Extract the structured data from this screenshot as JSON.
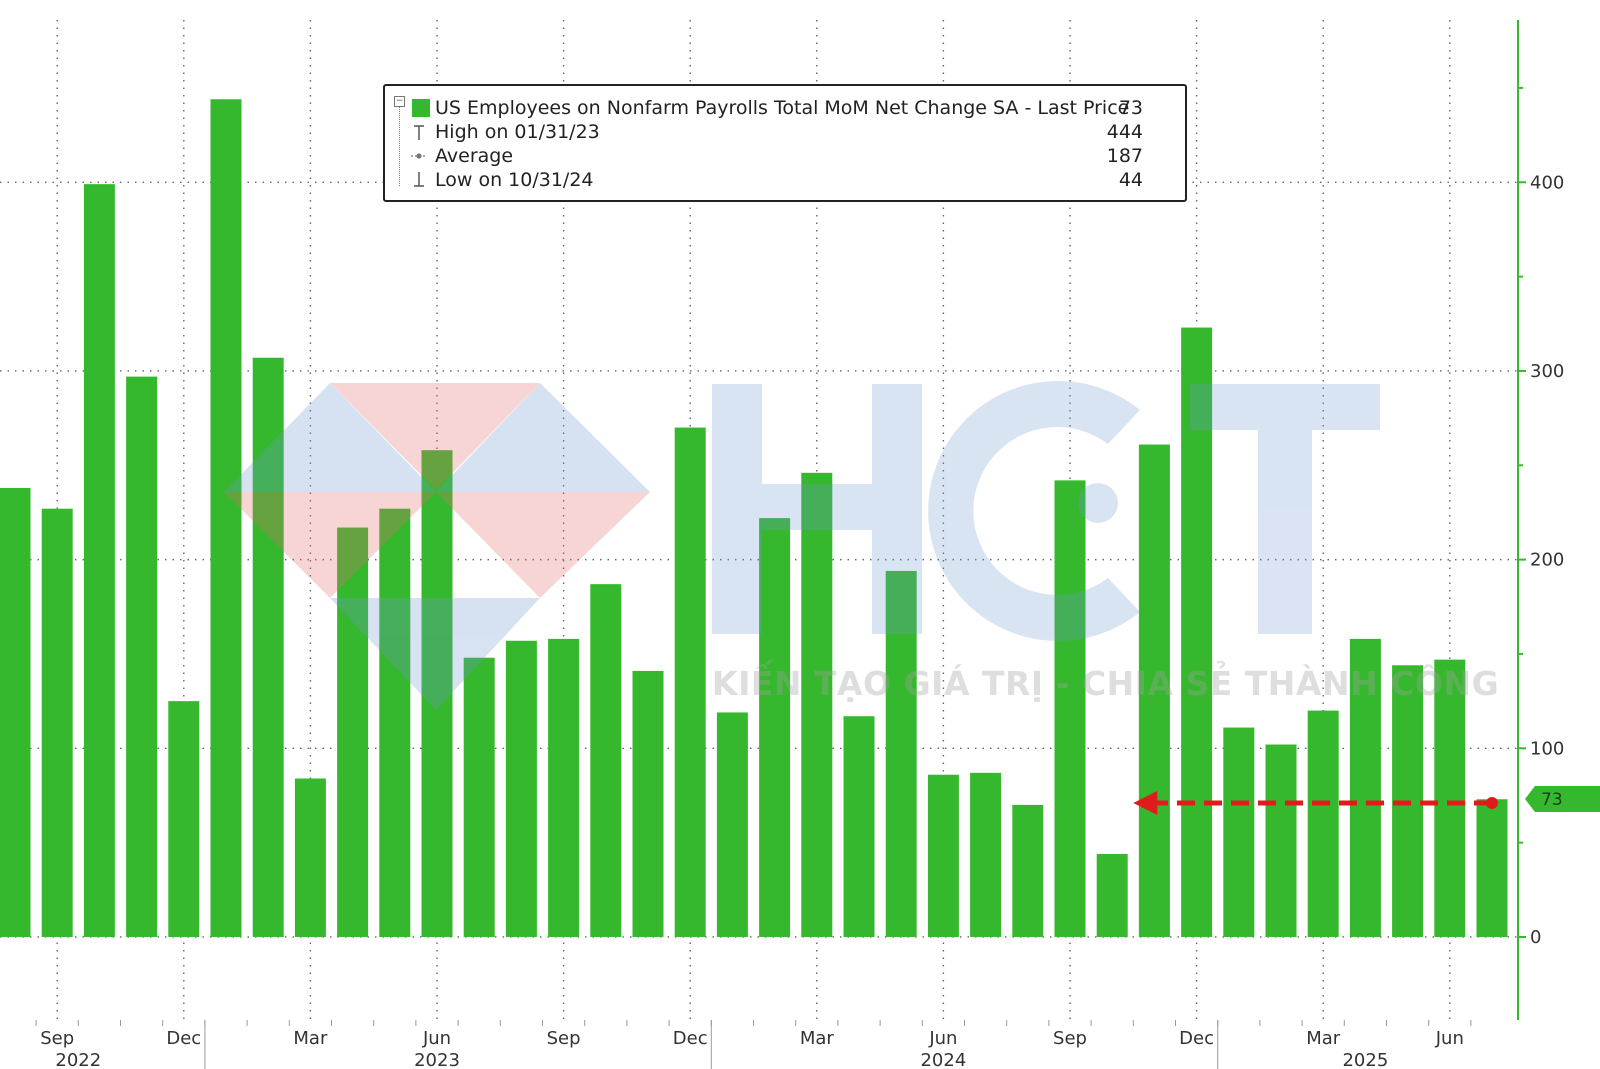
{
  "chart_data": {
    "type": "bar",
    "series": [
      {
        "name": "US Employees on Nonfarm Payrolls Total MoM Net Change SA - Last Price",
        "color": "#36b82e",
        "values": [
          238,
          227,
          399,
          297,
          125,
          444,
          307,
          84,
          217,
          227,
          258,
          148,
          157,
          158,
          187,
          141,
          270,
          119,
          222,
          246,
          117,
          194,
          86,
          87,
          70,
          242,
          44,
          261,
          323,
          111,
          102,
          120,
          158,
          144,
          147,
          73
        ]
      }
    ],
    "ylim": [
      -44,
      486
    ],
    "yticks": [
      0,
      100,
      200,
      300,
      400
    ],
    "grid": true,
    "legend": {
      "placement": "top-center",
      "entries": [
        {
          "label": "US Employees on Nonfarm Payrolls Total MoM Net Change SA - Last Price",
          "value": "73",
          "icon": "square-swatch"
        },
        {
          "label": "High on 01/31/23",
          "value": "444",
          "icon": "high-marker-icon"
        },
        {
          "label": "Average",
          "value": "187",
          "icon": "average-marker-icon"
        },
        {
          "label": "Low on 10/31/24",
          "value": "44",
          "icon": "low-marker-icon"
        }
      ]
    },
    "x_month_ticks": [
      {
        "label": "Sep",
        "index": 1
      },
      {
        "label": "Dec",
        "index": 4
      },
      {
        "label": "Mar",
        "index": 7
      },
      {
        "label": "Jun",
        "index": 10
      },
      {
        "label": "Sep",
        "index": 13
      },
      {
        "label": "Dec",
        "index": 16
      },
      {
        "label": "Mar",
        "index": 19
      },
      {
        "label": "Jun",
        "index": 22
      },
      {
        "label": "Sep",
        "index": 25
      },
      {
        "label": "Dec",
        "index": 28
      },
      {
        "label": "Mar",
        "index": 31
      },
      {
        "label": "Jun",
        "index": 34
      }
    ],
    "x_year_labels": [
      {
        "label": "2022",
        "start": -1,
        "end": 4
      },
      {
        "label": "2023",
        "start": 4,
        "end": 16
      },
      {
        "label": "2024",
        "start": 16,
        "end": 28
      },
      {
        "label": "2025",
        "start": 28,
        "end": 36
      }
    ],
    "last_value": "73",
    "annotation": {
      "type": "dashed-arrow",
      "color": "#e01b1b",
      "from_index": 35,
      "to_index": 26.5,
      "value": 71
    }
  },
  "watermark": {
    "logo_text": "HCT",
    "slogan": "KIẾN TẠO GIÁ TRỊ - CHIA SẺ THÀNH CÔNG"
  }
}
